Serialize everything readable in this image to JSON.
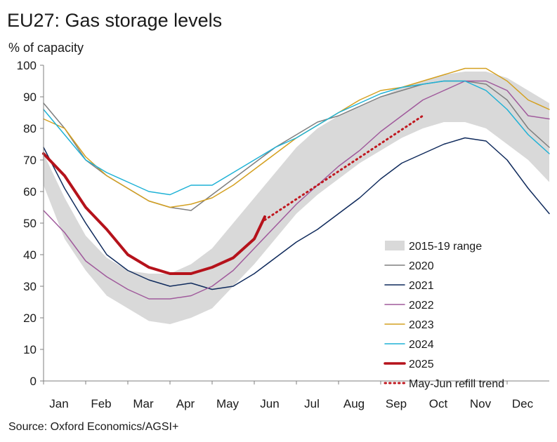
{
  "title": "EU27: Gas storage levels",
  "subtitle": "% of capacity",
  "source": "Source: Oxford Economics/AGSI+",
  "chart_data": {
    "type": "line",
    "ylim": [
      0,
      100
    ],
    "xlim": [
      0,
      12
    ],
    "y_ticks": [
      0,
      10,
      20,
      30,
      40,
      50,
      60,
      70,
      80,
      90,
      100
    ],
    "x_tick_labels": [
      "Jan",
      "Feb",
      "Mar",
      "Apr",
      "May",
      "Jun",
      "Jul",
      "Aug",
      "Sep",
      "Oct",
      "Nov",
      "Dec"
    ],
    "grid": false,
    "legend_position": "bottom-right",
    "range": {
      "name": "2015-19 range",
      "color": "#d9d9d9",
      "x": [
        0,
        0.5,
        1,
        1.5,
        2,
        2.5,
        3,
        3.5,
        4,
        4.5,
        5,
        5.5,
        6,
        6.5,
        7,
        7.5,
        8,
        8.5,
        9,
        9.5,
        10,
        10.5,
        11,
        11.5,
        12
      ],
      "lower": [
        62,
        45,
        35,
        27,
        23,
        19,
        18,
        20,
        23,
        30,
        37,
        45,
        53,
        59,
        64,
        69,
        73,
        77,
        80,
        82,
        82,
        80,
        75,
        70,
        63
      ],
      "upper": [
        72,
        58,
        46,
        39,
        35,
        34,
        34,
        37,
        42,
        50,
        58,
        66,
        74,
        80,
        84,
        87,
        90,
        93,
        95,
        97,
        98,
        98,
        96,
        92,
        88
      ]
    },
    "series": [
      {
        "name": "2020",
        "color": "#7f7f7f",
        "width": 1.5,
        "x": [
          0,
          0.5,
          1,
          1.5,
          2,
          2.5,
          3,
          3.5,
          4,
          4.5,
          5,
          5.5,
          6,
          6.5,
          7,
          7.5,
          8,
          8.5,
          9,
          9.5,
          10,
          10.5,
          11,
          11.5,
          12
        ],
        "y": [
          88,
          80,
          70,
          65,
          61,
          57,
          55,
          54,
          59,
          64,
          69,
          74,
          78,
          82,
          84,
          87,
          90,
          92,
          94,
          95,
          95,
          94,
          89,
          80,
          74
        ]
      },
      {
        "name": "2021",
        "color": "#0f2a5c",
        "width": 1.5,
        "x": [
          0,
          0.5,
          1,
          1.5,
          2,
          2.5,
          3,
          3.5,
          4,
          4.5,
          5,
          5.5,
          6,
          6.5,
          7,
          7.5,
          8,
          8.5,
          9,
          9.5,
          10,
          10.5,
          11,
          11.5,
          12
        ],
        "y": [
          74,
          61,
          50,
          40,
          35,
          32,
          30,
          31,
          29,
          30,
          34,
          39,
          44,
          48,
          53,
          58,
          64,
          69,
          72,
          75,
          77,
          76,
          70,
          61,
          53
        ]
      },
      {
        "name": "2022",
        "color": "#a05a9c",
        "width": 1.5,
        "x": [
          0,
          0.5,
          1,
          1.5,
          2,
          2.5,
          3,
          3.5,
          4,
          4.5,
          5,
          5.5,
          6,
          6.5,
          7,
          7.5,
          8,
          8.5,
          9,
          9.5,
          10,
          10.5,
          11,
          11.5,
          12
        ],
        "y": [
          54,
          47,
          38,
          33,
          29,
          26,
          26,
          27,
          30,
          35,
          42,
          49,
          56,
          62,
          68,
          73,
          79,
          84,
          89,
          92,
          95,
          95,
          92,
          84,
          83
        ]
      },
      {
        "name": "2023",
        "color": "#d4a020",
        "width": 1.5,
        "x": [
          0,
          0.5,
          1,
          1.5,
          2,
          2.5,
          3,
          3.5,
          4,
          4.5,
          5,
          5.5,
          6,
          6.5,
          7,
          7.5,
          8,
          8.5,
          9,
          9.5,
          10,
          10.5,
          11,
          11.5,
          12
        ],
        "y": [
          83,
          80,
          71,
          65,
          61,
          57,
          55,
          56,
          58,
          62,
          67,
          72,
          77,
          81,
          85,
          89,
          92,
          93,
          95,
          97,
          99,
          99,
          95,
          89,
          86
        ]
      },
      {
        "name": "2024",
        "color": "#1fb2d6",
        "width": 1.5,
        "x": [
          0,
          0.5,
          1,
          1.5,
          2,
          2.5,
          3,
          3.5,
          4,
          4.5,
          5,
          5.5,
          6,
          6.5,
          7,
          7.5,
          8,
          8.5,
          9,
          9.5,
          10,
          10.5,
          11,
          11.5,
          12
        ],
        "y": [
          86,
          78,
          70,
          66,
          63,
          60,
          59,
          62,
          62,
          66,
          70,
          74,
          77,
          81,
          85,
          88,
          91,
          93,
          94,
          95,
          95,
          92,
          86,
          78,
          72
        ]
      },
      {
        "name": "2025",
        "color": "#b5121b",
        "width": 4,
        "x": [
          0,
          0.5,
          1,
          1.5,
          2,
          2.5,
          3,
          3.5,
          4,
          4.5,
          5,
          5.25
        ],
        "y": [
          72,
          65,
          55,
          48,
          40,
          36,
          34,
          34,
          36,
          39,
          45,
          52
        ]
      },
      {
        "name": "May-Jun refill trend",
        "color": "#c0181f",
        "width": 3,
        "dashed": true,
        "x": [
          5.25,
          9
        ],
        "y": [
          51,
          84
        ]
      }
    ]
  }
}
